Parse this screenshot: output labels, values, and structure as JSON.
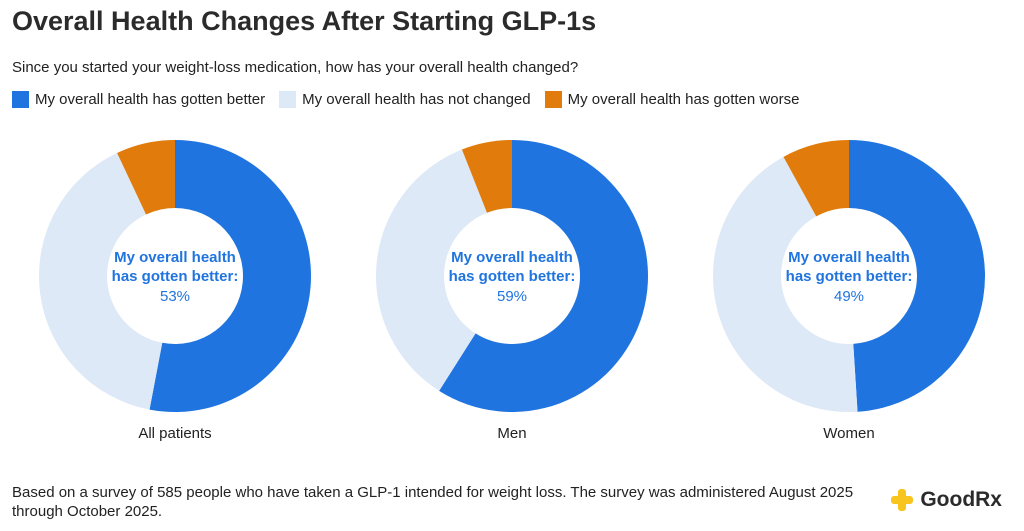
{
  "title": "Overall Health Changes After Starting GLP-1s",
  "subtitle": "Since you started your weight-loss medication, how has your overall health changed?",
  "colors": {
    "better": "#1f74df",
    "not_changed": "#dde9f6",
    "worse": "#e07b0c",
    "center_text": "#1f74df"
  },
  "legend": [
    {
      "label": "My overall health has gotten better",
      "color": "#1f74df"
    },
    {
      "label": "My overall health has not changed",
      "color": "#dde9f6"
    },
    {
      "label": "My overall health has gotten worse",
      "color": "#e07b0c"
    }
  ],
  "chart_data": [
    {
      "type": "pie",
      "label": "All patients",
      "center_label": [
        "My overall health",
        "has gotten better:"
      ],
      "center_value": "53%",
      "categories": [
        "My overall health has gotten better",
        "My overall health has not changed",
        "My overall health has gotten worse"
      ],
      "values": [
        53,
        40,
        7
      ]
    },
    {
      "type": "pie",
      "label": "Men",
      "center_label": [
        "My overall health",
        "has gotten better:"
      ],
      "center_value": "59%",
      "categories": [
        "My overall health has gotten better",
        "My overall health has not changed",
        "My overall health has gotten worse"
      ],
      "values": [
        59,
        35,
        6
      ]
    },
    {
      "type": "pie",
      "label": "Women",
      "center_label": [
        "My overall health",
        "has gotten better:"
      ],
      "center_value": "49%",
      "categories": [
        "My overall health has gotten better",
        "My overall health has not changed",
        "My overall health has gotten worse"
      ],
      "values": [
        49,
        43,
        8
      ]
    }
  ],
  "footnote": "Based on a survey of 585 people who have taken a GLP-1 intended for weight loss. The survey was administered August 2025 through October 2025.",
  "logo": {
    "text": "GoodRx",
    "icon": "goodrx-plus-icon",
    "color": "#f7c51e"
  }
}
